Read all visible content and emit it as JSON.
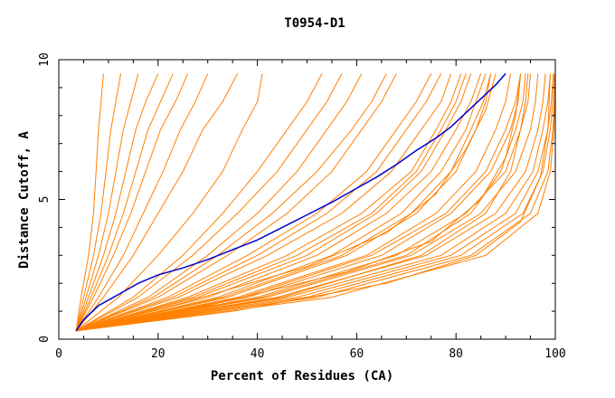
{
  "chart_data": {
    "type": "line",
    "title": "T0954-D1",
    "xlabel": "Percent of Residues (CA)",
    "ylabel": "Distance Cutoff, A",
    "xlim": [
      0,
      100
    ],
    "ylim": [
      0,
      10
    ],
    "x_ticks": [
      0,
      20,
      40,
      60,
      80,
      100
    ],
    "y_ticks": [
      0,
      5,
      10
    ],
    "grid": false,
    "legend": "none",
    "colors": {
      "highlight": "#0000cc",
      "others": "#ff8000",
      "axis": "#000000"
    },
    "highlighted_series": {
      "x": [
        3.5,
        5,
        8,
        12,
        16,
        20,
        25,
        30,
        35,
        40,
        45,
        50,
        55,
        60,
        64,
        68,
        72,
        76,
        79,
        82,
        85,
        88,
        90
      ],
      "y": [
        0.3,
        0.7,
        1.2,
        1.6,
        2.0,
        2.3,
        2.55,
        2.85,
        3.2,
        3.55,
        4.0,
        4.45,
        4.9,
        5.4,
        5.8,
        6.25,
        6.75,
        7.2,
        7.6,
        8.1,
        8.6,
        9.1,
        9.5
      ]
    },
    "other_series": [
      {
        "x": [
          3.5,
          4.5,
          6,
          7,
          7.5,
          8,
          8.5,
          9
        ],
        "y": [
          0.3,
          1.5,
          3.0,
          4.5,
          6.0,
          7.5,
          8.5,
          9.5
        ]
      },
      {
        "x": [
          3.5,
          5,
          7,
          8.5,
          9.5,
          10.5,
          11.5,
          12.5
        ],
        "y": [
          0.3,
          1.5,
          3.0,
          4.5,
          6.0,
          7.5,
          8.5,
          9.5
        ]
      },
      {
        "x": [
          3.5,
          5.5,
          8,
          10,
          11.5,
          13,
          14.5,
          16
        ],
        "y": [
          0.3,
          1.5,
          3.0,
          4.5,
          6.0,
          7.5,
          8.5,
          9.5
        ]
      },
      {
        "x": [
          3.5,
          6,
          9,
          11.5,
          13.5,
          15.5,
          17.5,
          20
        ],
        "y": [
          0.3,
          1.5,
          3.0,
          4.5,
          6.0,
          7.5,
          8.5,
          9.5
        ]
      },
      {
        "x": [
          3.5,
          6.5,
          10,
          13,
          15.5,
          18,
          20.5,
          23
        ],
        "y": [
          0.3,
          1.5,
          3.0,
          4.5,
          6.0,
          7.5,
          8.5,
          9.5
        ]
      },
      {
        "x": [
          3.5,
          7,
          11,
          14.5,
          17.5,
          20.5,
          23.5,
          26
        ],
        "y": [
          0.3,
          1.5,
          3.0,
          4.5,
          6.0,
          7.5,
          8.5,
          9.5
        ]
      },
      {
        "x": [
          3.5,
          8,
          13,
          17,
          21,
          24.5,
          27.5,
          30
        ],
        "y": [
          0.3,
          1.5,
          3.0,
          4.5,
          6.0,
          7.5,
          8.5,
          9.5
        ]
      },
      {
        "x": [
          3.5,
          9,
          15,
          20,
          25,
          29,
          33,
          36
        ],
        "y": [
          0.3,
          1.5,
          3.0,
          4.5,
          6.0,
          7.5,
          8.5,
          9.5
        ]
      },
      {
        "x": [
          3.5,
          12,
          20,
          27,
          33,
          37,
          40,
          41
        ],
        "y": [
          0.3,
          1.5,
          3.0,
          4.5,
          6.0,
          7.5,
          8.5,
          9.5
        ]
      },
      {
        "x": [
          3.5,
          15,
          25,
          33,
          40,
          46,
          50,
          53
        ],
        "y": [
          0.3,
          1.5,
          3.0,
          4.5,
          6.0,
          7.5,
          8.5,
          9.5
        ]
      },
      {
        "x": [
          3.5,
          18,
          30,
          40,
          48,
          54,
          58,
          61
        ],
        "y": [
          0.3,
          1.5,
          3.0,
          4.5,
          6.0,
          7.5,
          8.5,
          9.5
        ]
      },
      {
        "x": [
          3.5,
          20,
          34,
          46,
          55,
          61,
          65,
          68
        ],
        "y": [
          0.3,
          1.5,
          3.0,
          4.5,
          6.0,
          7.5,
          8.5,
          9.5
        ]
      },
      {
        "x": [
          3.5,
          22,
          38,
          52,
          62,
          68,
          72,
          75
        ],
        "y": [
          0.3,
          1.5,
          3.0,
          4.5,
          6.0,
          7.5,
          8.5,
          9.5
        ]
      },
      {
        "x": [
          3.5,
          24,
          42,
          57,
          67,
          73,
          77,
          79
        ],
        "y": [
          0.3,
          1.5,
          3.0,
          4.5,
          6.0,
          7.5,
          8.5,
          9.5
        ]
      },
      {
        "x": [
          3.5,
          26,
          46,
          61,
          71,
          76,
          79,
          81
        ],
        "y": [
          0.3,
          1.5,
          3.0,
          4.5,
          6.0,
          7.5,
          8.5,
          9.5
        ]
      },
      {
        "x": [
          3.5,
          28,
          50,
          64,
          73,
          78,
          81,
          83
        ],
        "y": [
          0.3,
          1.5,
          3.0,
          4.5,
          6.0,
          7.5,
          8.5,
          9.5
        ]
      },
      {
        "x": [
          3.5,
          30,
          52,
          66,
          75,
          80,
          83,
          85
        ],
        "y": [
          0.3,
          1.5,
          3.0,
          4.5,
          6.0,
          7.5,
          8.5,
          9.5
        ]
      },
      {
        "x": [
          3.5,
          32,
          55,
          69,
          77,
          82,
          84,
          86
        ],
        "y": [
          0.3,
          1.5,
          3.0,
          4.5,
          6.0,
          7.5,
          8.5,
          9.5
        ]
      },
      {
        "x": [
          3.5,
          34,
          58,
          72,
          80,
          84,
          86,
          87
        ],
        "y": [
          0.3,
          1.5,
          3.0,
          4.5,
          6.0,
          7.5,
          8.5,
          9.5
        ]
      },
      {
        "x": [
          3.5,
          36,
          62,
          76,
          84,
          88,
          90,
          91
        ],
        "y": [
          0.3,
          1.5,
          3.0,
          4.5,
          6.0,
          7.5,
          8.5,
          9.5
        ]
      },
      {
        "x": [
          3.5,
          38,
          65,
          79,
          87,
          91,
          92.5,
          93
        ],
        "y": [
          0.3,
          1.5,
          3.0,
          4.5,
          6.0,
          7.5,
          8.5,
          9.5
        ]
      },
      {
        "x": [
          3.5,
          40,
          68,
          82,
          90,
          93,
          94.5,
          95
        ],
        "y": [
          0.3,
          1.5,
          3.0,
          4.5,
          6.0,
          7.5,
          8.5,
          9.5
        ]
      },
      {
        "x": [
          3.5,
          42,
          71,
          85,
          92,
          95,
          96,
          96.5
        ],
        "y": [
          0.3,
          1.5,
          3.0,
          4.5,
          6.0,
          7.5,
          8.5,
          9.5
        ]
      },
      {
        "x": [
          3.5,
          44,
          74,
          88,
          94,
          96.5,
          97.5,
          98
        ],
        "y": [
          0.3,
          1.5,
          3.0,
          4.5,
          6.0,
          7.5,
          8.5,
          9.5
        ]
      },
      {
        "x": [
          3.5,
          46,
          77,
          90,
          95.5,
          97.5,
          98.5,
          99
        ],
        "y": [
          0.3,
          1.5,
          3.0,
          4.5,
          6.0,
          7.5,
          8.5,
          9.5
        ]
      },
      {
        "x": [
          3.5,
          48,
          79,
          92,
          96.5,
          98.5,
          99.2,
          99.6
        ],
        "y": [
          0.3,
          1.5,
          3.0,
          4.5,
          6.0,
          7.5,
          8.5,
          9.5
        ]
      },
      {
        "x": [
          3.5,
          50,
          81,
          93.5,
          97.5,
          99,
          99.5,
          99.8
        ],
        "y": [
          0.3,
          1.5,
          3.0,
          4.5,
          6.0,
          7.5,
          8.5,
          9.5
        ]
      },
      {
        "x": [
          3.5,
          52,
          83,
          95,
          98.5,
          99.5,
          99.8,
          100
        ],
        "y": [
          0.3,
          1.5,
          3.0,
          4.5,
          6.0,
          7.5,
          8.5,
          9.5
        ]
      },
      {
        "x": [
          3.5,
          55,
          86,
          96.5,
          99,
          99.7,
          99.9,
          100
        ],
        "y": [
          0.3,
          1.5,
          3.0,
          4.5,
          6.0,
          7.5,
          8.5,
          9.5
        ]
      },
      {
        "x": [
          3.5,
          45,
          73,
          86,
          91,
          93,
          94,
          94.5
        ],
        "y": [
          0.3,
          1.5,
          3.0,
          4.5,
          6.0,
          7.5,
          8.5,
          9.5
        ]
      },
      {
        "x": [
          3.5,
          41,
          70,
          83,
          89,
          92,
          93.5,
          94
        ],
        "y": [
          0.3,
          1.5,
          3.0,
          4.5,
          6.0,
          7.5,
          8.5,
          9.5
        ]
      },
      {
        "x": [
          3.5,
          37,
          63,
          78,
          86,
          90,
          92,
          93
        ],
        "y": [
          0.3,
          1.5,
          3.0,
          4.5,
          6.0,
          7.5,
          8.5,
          9.5
        ]
      },
      {
        "x": [
          3.5,
          33,
          57,
          71,
          79,
          83,
          85.5,
          87
        ],
        "y": [
          0.3,
          1.5,
          3.0,
          4.5,
          6.0,
          7.5,
          8.5,
          9.5
        ]
      },
      {
        "x": [
          3.5,
          27,
          48,
          63,
          72,
          77,
          80,
          82
        ],
        "y": [
          0.3,
          1.5,
          3.0,
          4.5,
          6.0,
          7.5,
          8.5,
          9.5
        ]
      },
      {
        "x": [
          3.5,
          23,
          40,
          54,
          64,
          70,
          74,
          77
        ],
        "y": [
          0.3,
          1.5,
          3.0,
          4.5,
          6.0,
          7.5,
          8.5,
          9.5
        ]
      },
      {
        "x": [
          3.5,
          19,
          32,
          43,
          52,
          59,
          63,
          66
        ],
        "y": [
          0.3,
          1.5,
          3.0,
          4.5,
          6.0,
          7.5,
          8.5,
          9.5
        ]
      },
      {
        "x": [
          3.5,
          16,
          27,
          36,
          44,
          50,
          54,
          57
        ],
        "y": [
          0.3,
          1.5,
          3.0,
          4.5,
          6.0,
          7.5,
          8.5,
          9.5
        ]
      },
      {
        "x": [
          3.5,
          30,
          58,
          75,
          85,
          90,
          92,
          93
        ],
        "y": [
          0.3,
          1.2,
          2.4,
          3.5,
          5.0,
          6.5,
          8.0,
          9.5
        ]
      },
      {
        "x": [
          3.5,
          35,
          66,
          84,
          93,
          97,
          98.5,
          99
        ],
        "y": [
          0.3,
          1.0,
          2.0,
          3.0,
          4.2,
          5.8,
          7.5,
          9.5
        ]
      },
      {
        "x": [
          3.5,
          25,
          50,
          66,
          76,
          82,
          86,
          88
        ],
        "y": [
          0.3,
          1.3,
          2.6,
          3.8,
          5.2,
          6.8,
          8.2,
          9.5
        ]
      }
    ]
  }
}
